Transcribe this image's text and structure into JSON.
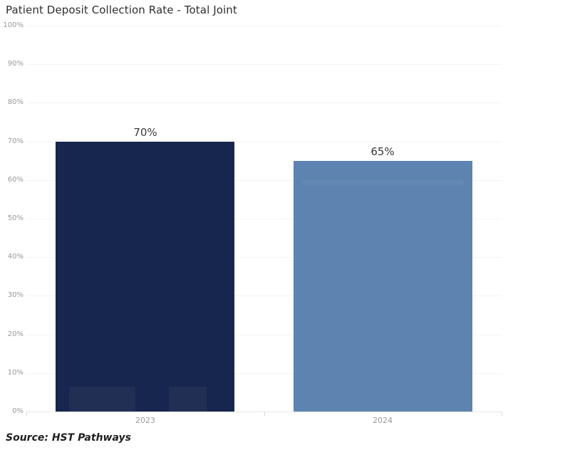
{
  "title": "Patient Deposit Collection Rate - Total Joint",
  "source": "Source: HST Pathways",
  "chart_data": {
    "type": "bar",
    "title": "Patient Deposit Collection Rate - Total Joint",
    "categories": [
      "2023",
      "2024"
    ],
    "values": [
      70,
      65
    ],
    "value_labels": [
      "70%",
      "65%"
    ],
    "xlabel": "",
    "ylabel": "",
    "ylim": [
      0,
      100
    ],
    "ytick_step": 10,
    "ytick_labels": [
      "0%",
      "10%",
      "20%",
      "30%",
      "40%",
      "50%",
      "60%",
      "70%",
      "80%",
      "90%",
      "100%"
    ],
    "grid": true,
    "legend": false,
    "bar_colors": [
      "#17264e",
      "#5d83b0"
    ],
    "colors": {
      "gridline": "#f4f4f4",
      "axis_line": "#e7e7e7",
      "axis_label": "#999999",
      "value_label": "#3a3a3a",
      "title_text": "#2e2e2e",
      "source_text": "#1f1f1f",
      "background": "#ffffff"
    },
    "source_note": "Source: HST Pathways"
  }
}
